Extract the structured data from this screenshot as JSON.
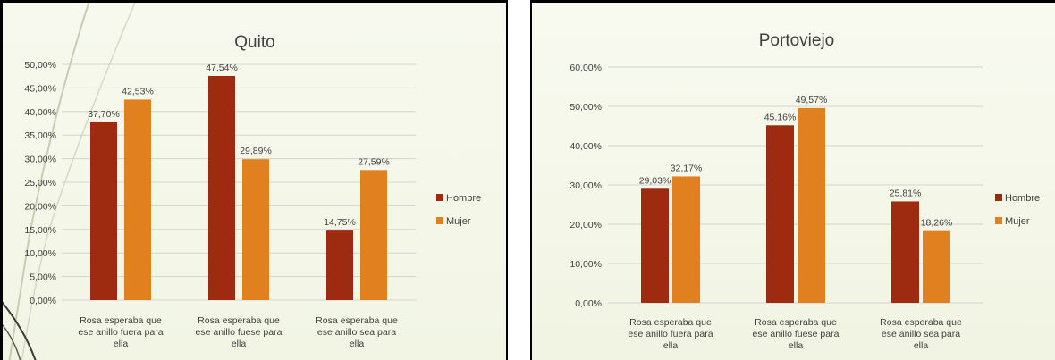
{
  "colors": {
    "hombre": "#9e2a0f",
    "mujer": "#e0801e",
    "grid": "#d3d3d3",
    "text": "#404040"
  },
  "chart_data": [
    {
      "type": "bar",
      "title": "Quito",
      "categories": [
        [
          "Rosa esperaba que",
          "ese anillo fuera para",
          "ella"
        ],
        [
          "Rosa esperaba que",
          "ese anillo fuese para",
          "ella"
        ],
        [
          "Rosa esperaba que",
          "ese anillo sea para",
          "ella"
        ]
      ],
      "series": [
        {
          "name": "Hombre",
          "values": [
            37.7,
            47.54,
            14.75
          ],
          "labels": [
            "37,70%",
            "47,54%",
            "14,75%"
          ]
        },
        {
          "name": "Mujer",
          "values": [
            42.53,
            29.89,
            27.59
          ],
          "labels": [
            "42,53%",
            "29,89%",
            "27,59%"
          ]
        }
      ],
      "ylim": [
        0,
        50
      ],
      "yticks": [
        "0,00%",
        "5,00%",
        "10,00%",
        "15,00%",
        "20,00%",
        "25,00%",
        "30,00%",
        "35,00%",
        "40,00%",
        "45,00%",
        "50,00%"
      ],
      "grid": true,
      "legend": "right"
    },
    {
      "type": "bar",
      "title": "Portoviejo",
      "categories": [
        [
          "Rosa esperaba que",
          "ese anillo fuera para",
          "ella"
        ],
        [
          "Rosa esperaba que",
          "ese anillo fuese para",
          "ella"
        ],
        [
          "Rosa esperaba que",
          "ese anillo sea para",
          "ella"
        ]
      ],
      "series": [
        {
          "name": "Hombre",
          "values": [
            29.03,
            45.16,
            25.81
          ],
          "labels": [
            "29,03%",
            "45,16%",
            "25,81%"
          ]
        },
        {
          "name": "Mujer",
          "values": [
            32.17,
            49.57,
            18.26
          ],
          "labels": [
            "32,17%",
            "49,57%",
            "18,26%"
          ]
        }
      ],
      "ylim": [
        0,
        60
      ],
      "yticks": [
        "0,00%",
        "10,00%",
        "20,00%",
        "30,00%",
        "40,00%",
        "50,00%",
        "60,00%"
      ],
      "grid": true,
      "legend": "right"
    }
  ]
}
